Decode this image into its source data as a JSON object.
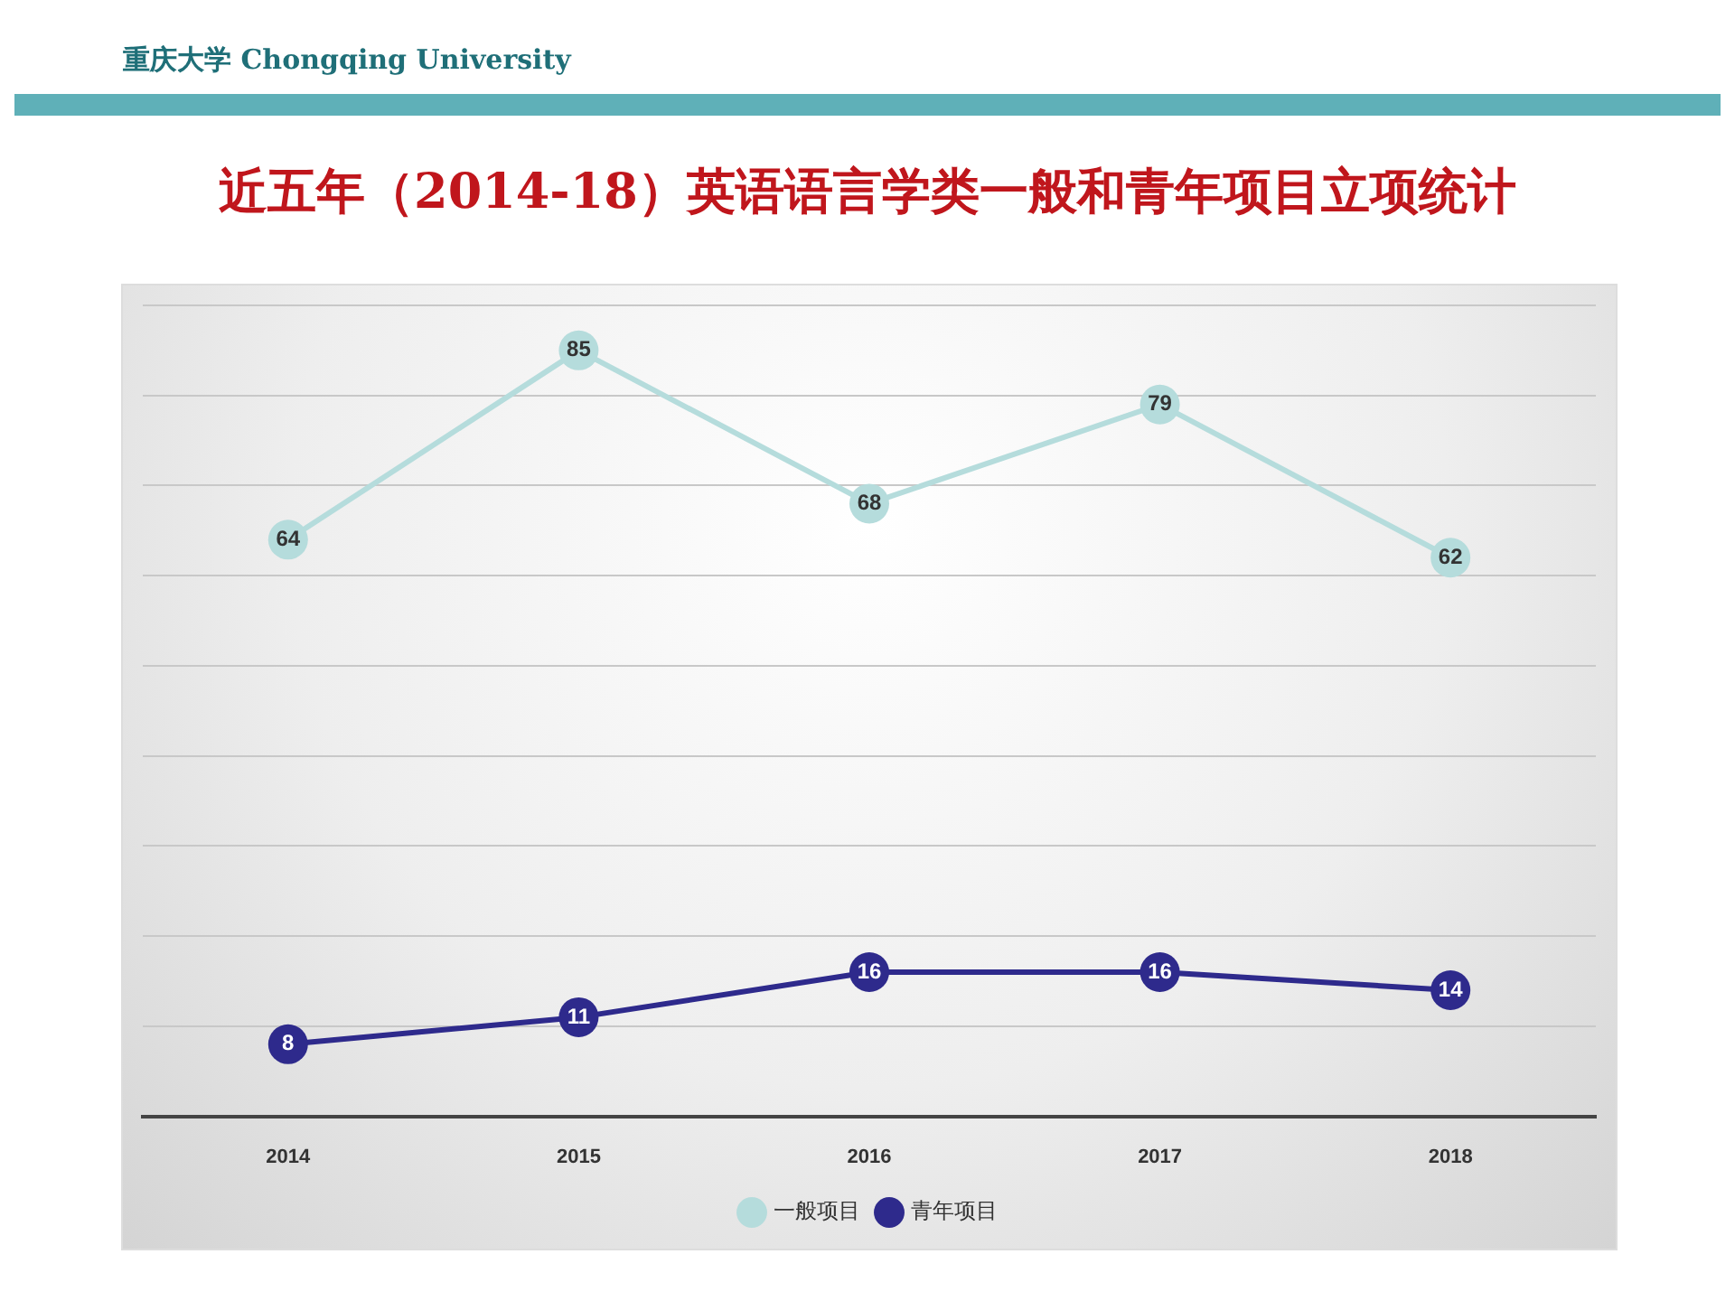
{
  "chart_data": {
    "type": "line",
    "title": "近五年（2014-18）英语语言学类一般和青年项目立项统计",
    "annotations": [
      "重庆大学 Chongqing University"
    ],
    "categories": [
      "2014",
      "2015",
      "2016",
      "2017",
      "2018"
    ],
    "series": [
      {
        "name": "一般项目",
        "color": "#b5dcdc",
        "values": [
          64,
          85,
          68,
          79,
          62
        ]
      },
      {
        "name": "青年项目",
        "color": "#2e2a8c",
        "values": [
          8,
          11,
          16,
          16,
          14
        ]
      }
    ],
    "ylim": [
      0,
      90
    ],
    "yticks": [
      {
        "value": 0,
        "label": null
      },
      {
        "value": 10,
        "label": null
      },
      {
        "value": 20,
        "label": null
      },
      {
        "value": 30,
        "label": null
      },
      {
        "value": 40,
        "label": null
      },
      {
        "value": 50,
        "label": null
      },
      {
        "value": 60,
        "label": null
      },
      {
        "value": 70,
        "label": null
      },
      {
        "value": 80,
        "label": null
      },
      {
        "value": 90,
        "label": null
      }
    ],
    "tick_labels": "x",
    "grid": "y",
    "legend": "bottom",
    "marker": "circle",
    "line_style": "solid",
    "data_labels": true
  }
}
